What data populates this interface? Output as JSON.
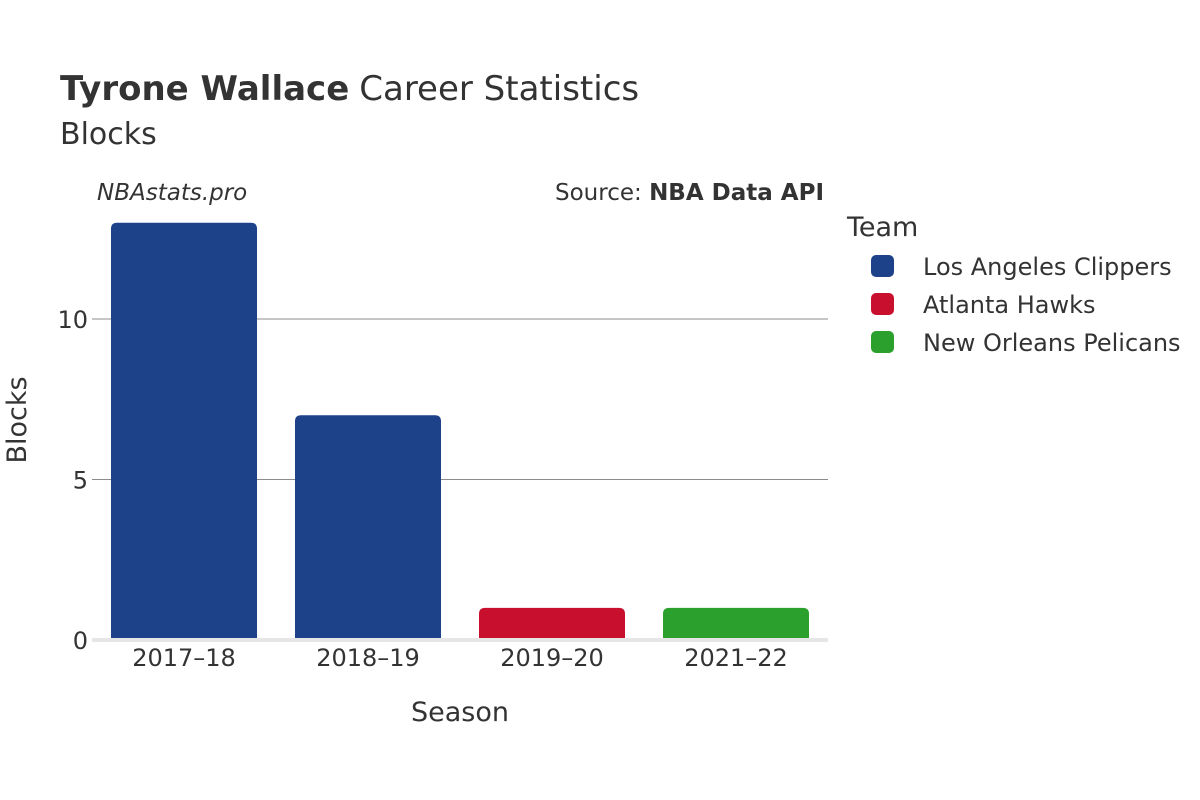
{
  "title": {
    "name": "Tyrone Wallace",
    "rest": "Career Statistics",
    "subtitle": "Blocks"
  },
  "watermark": "NBAstats.pro",
  "source": {
    "prefix": "Source: ",
    "name": "NBA Data API"
  },
  "legend": {
    "title": "Team",
    "placement": "right",
    "items": [
      {
        "label": "Los Angeles Clippers",
        "color": "#1d428a"
      },
      {
        "label": "Atlanta Hawks",
        "color": "#c8102e"
      },
      {
        "label": "New Orleans Pelicans",
        "color": "#2ca02c"
      }
    ]
  },
  "chart_data": {
    "type": "bar",
    "title": "Tyrone Wallace Career Statistics",
    "subtitle": "Blocks",
    "xlabel": "Season",
    "ylabel": "Blocks",
    "categories": [
      "2017–18",
      "2018–19",
      "2019–20",
      "2021–22"
    ],
    "values": [
      13,
      7,
      1,
      1
    ],
    "teams": [
      "Los Angeles Clippers",
      "Los Angeles Clippers",
      "Atlanta Hawks",
      "New Orleans Pelicans"
    ],
    "colors": [
      "#1d428a",
      "#1d428a",
      "#c8102e",
      "#2ca02c"
    ],
    "ylim": [
      0,
      13.7
    ],
    "yticks": [
      0,
      5,
      10
    ],
    "ytick_labels": [
      "0",
      "5",
      "10"
    ],
    "grid": true
  }
}
